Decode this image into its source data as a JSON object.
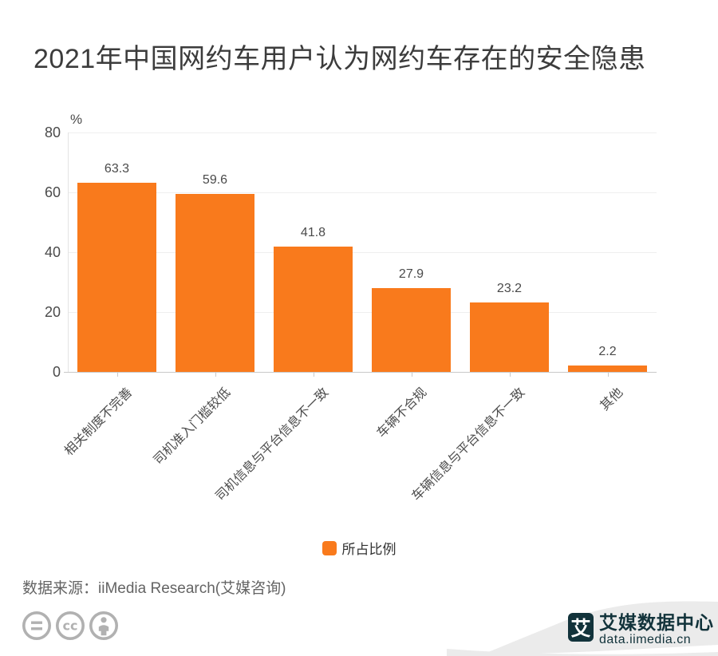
{
  "title": {
    "text": "2021年中国网约车用户认为网约车存在的安全隐患"
  },
  "chart_data": {
    "type": "bar",
    "categories": [
      "相关制度不完善",
      "司机准入门槛较低",
      "司机信息与平台信息不一致",
      "车辆不合规",
      "车辆信息与平台信息不一致",
      "其他"
    ],
    "values": [
      63.3,
      59.6,
      41.8,
      27.9,
      23.2,
      2.2
    ],
    "series_name": "所占比例",
    "unit": "%",
    "ylim": [
      0,
      80
    ],
    "yticks": [
      0,
      20,
      40,
      60,
      80
    ],
    "grid": "horizontal-only",
    "legend_position": "bottom-center",
    "bar_color": "#F97A1C"
  },
  "legend": {
    "label": "所占比例"
  },
  "source": {
    "text": "数据来源：iiMedia Research(艾媒咨询)"
  },
  "footer": {
    "license_icons": [
      "equals-icon",
      "cc-icon",
      "attribution-person-icon"
    ],
    "brand": {
      "logo_char": "艾",
      "name": "艾媒数据中心",
      "url": "data.iimedia.cn"
    }
  },
  "colors": {
    "bar": "#F97A1C",
    "title": "#3C3C3C",
    "grid": "#EFEFEF",
    "axis_line": "#C9C9C9",
    "label": "#4A4A4A",
    "source": "#646464",
    "icon_gray": "#B1B1B1",
    "ribbon": "#EBEBEB",
    "brand": "#12333B"
  }
}
